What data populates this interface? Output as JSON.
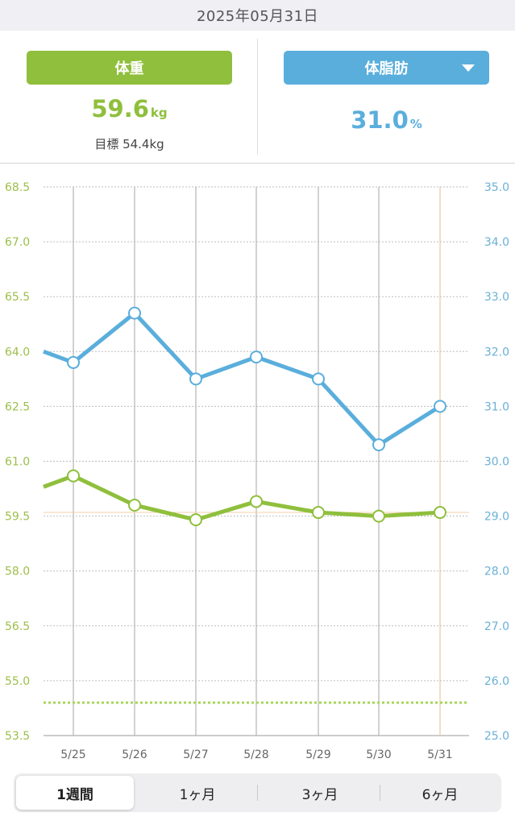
{
  "header": {
    "date": "2025年05月31日"
  },
  "summary": {
    "weight_label": "体重",
    "weight_value": "59.6",
    "weight_unit": "kg",
    "goal_label": "目標 54.4kg",
    "fat_label": "体脂肪",
    "fat_value": "31.0",
    "fat_unit": "%"
  },
  "colors": {
    "weight": "#8fbf3c",
    "fat": "#5aaedc",
    "goal_line": "#a6d65a",
    "today_line": "#e8c9a0"
  },
  "chart_data": {
    "type": "line",
    "categories": [
      "5/25",
      "5/26",
      "5/27",
      "5/28",
      "5/29",
      "5/30",
      "5/31"
    ],
    "y_left": {
      "ticks": [
        "68.5",
        "67.0",
        "65.5",
        "64.0",
        "62.5",
        "61.0",
        "59.5",
        "58.0",
        "56.5",
        "55.0",
        "53.5"
      ],
      "range": [
        53.5,
        68.5
      ]
    },
    "y_right": {
      "ticks": [
        "35.0",
        "34.0",
        "33.0",
        "32.0",
        "31.0",
        "30.0",
        "29.0",
        "28.0",
        "27.0",
        "26.0",
        "25.0"
      ],
      "range": [
        25.0,
        35.0
      ]
    },
    "series": [
      {
        "axis": "left",
        "values": [
          60.6,
          59.8,
          59.4,
          59.9,
          59.6,
          59.5,
          59.6
        ],
        "prev": 60.3
      },
      {
        "axis": "right",
        "values": [
          31.8,
          32.7,
          31.5,
          31.9,
          31.5,
          30.3,
          31.0
        ],
        "prev": 32.0
      }
    ],
    "goal": 54.4,
    "grid": true
  },
  "periods": {
    "week": "1週間",
    "month1": "1ヶ月",
    "month3": "3ヶ月",
    "month6": "6ヶ月"
  }
}
